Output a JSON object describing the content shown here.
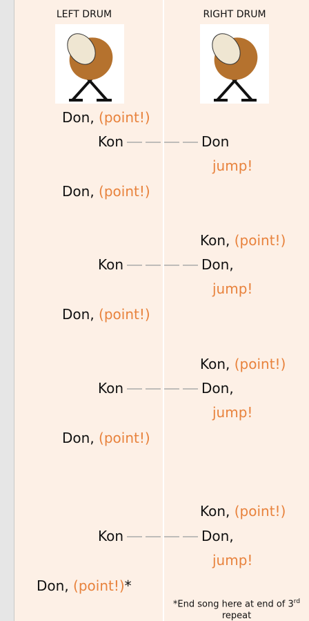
{
  "header": {
    "left": "LEFT DRUM",
    "right": "RIGHT DRUM"
  },
  "intro": {
    "don": "Don,",
    "point": "(point!)"
  },
  "repeats": [
    {
      "kon": "Kon",
      "don": "Don",
      "jump": "jump!",
      "left_don": "Don,",
      "left_point": "(point!)"
    },
    {
      "right_kon": "Kon,",
      "right_point": "(point!)",
      "kon": "Kon",
      "don": "Don,",
      "jump": "jump!",
      "left_don": "Don,",
      "left_point": "(point!)"
    },
    {
      "right_kon": "Kon,",
      "right_point": "(point!)",
      "kon": "Kon",
      "don": "Don,",
      "jump": "jump!",
      "left_don": "Don,",
      "left_point": "(point!)"
    },
    {
      "right_kon": "Kon,",
      "right_point": "(point!)",
      "kon": "Kon",
      "don": "Don,",
      "jump": "jump!",
      "left_don": "Don,",
      "left_point": "(point!)",
      "asterisk": "*"
    }
  ],
  "footnote": {
    "text": "*End song here at end of 3",
    "sup": "rd",
    "tail": " repeat"
  }
}
